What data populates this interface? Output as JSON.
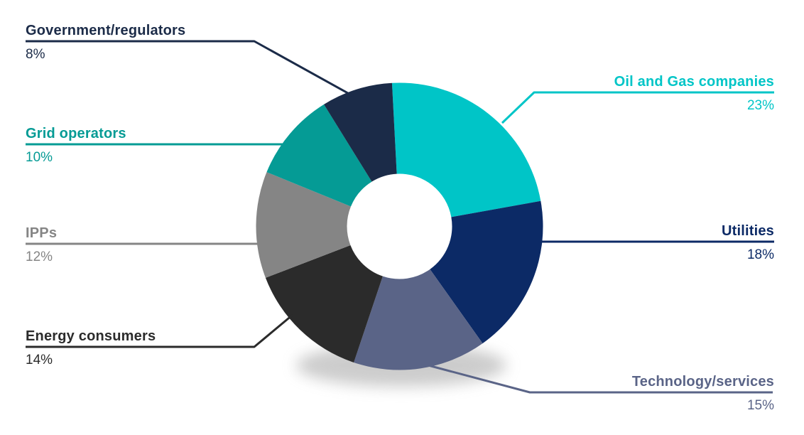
{
  "chart_data": {
    "type": "pie",
    "subtype": "donut",
    "title": "",
    "unit": "%",
    "legend": "none",
    "start_angle_deg": -3,
    "inner_radius_ratio": 0.366,
    "segments": [
      {
        "label": "Oil and Gas companies",
        "value": 23,
        "pct_label": "23%",
        "color": "#00C5C7"
      },
      {
        "label": "Utilities",
        "value": 18,
        "pct_label": "18%",
        "color": "#0C2A66"
      },
      {
        "label": "Technology/services",
        "value": 15,
        "pct_label": "15%",
        "color": "#5A6487"
      },
      {
        "label": "Energy consumers",
        "value": 14,
        "pct_label": "14%",
        "color": "#2B2B2B"
      },
      {
        "label": "IPPs",
        "value": 12,
        "pct_label": "12%",
        "color": "#858585"
      },
      {
        "label": "Grid operators",
        "value": 10,
        "pct_label": "10%",
        "color": "#059B95"
      },
      {
        "label": "Government/regulators",
        "value": 8,
        "pct_label": "8%",
        "color": "#1B2B48"
      }
    ]
  }
}
